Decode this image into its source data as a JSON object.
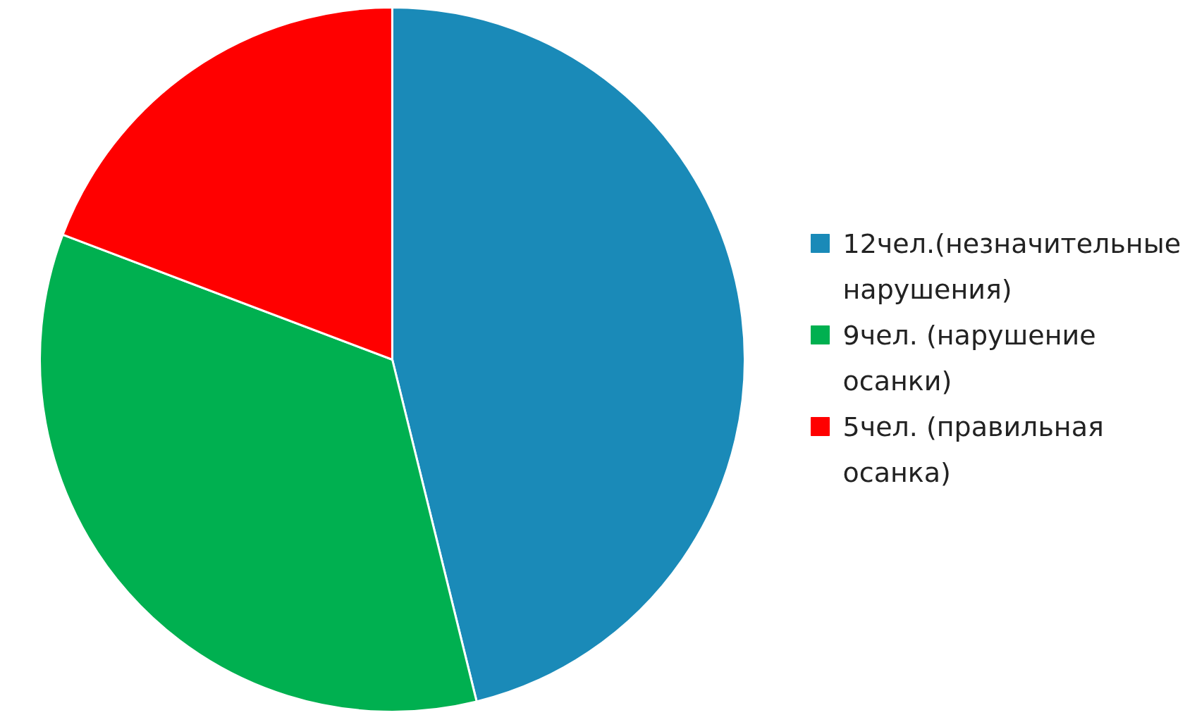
{
  "chart_data": {
    "type": "pie",
    "categories": [
      "12чел.(незначительные нарушения)",
      "9чел. (нарушение осанки)",
      "5чел. (правильная осанка)"
    ],
    "values": [
      12,
      9,
      5
    ],
    "colors": [
      "#1a8ab8",
      "#00b050",
      "#ff0000"
    ],
    "legend": "right"
  }
}
